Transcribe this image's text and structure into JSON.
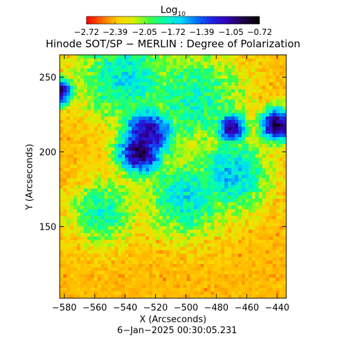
{
  "chart_data": {
    "type": "heatmap",
    "title": "Hinode SOT/SP − MERLIN : Degree of Polarization",
    "colorbar": {
      "label_base": "Log",
      "label_sub": "10",
      "ticks": [
        -2.72,
        -2.39,
        -2.05,
        -1.72,
        -1.39,
        -1.05,
        -0.72
      ],
      "tick_labels": [
        "−2.72",
        "−2.39",
        "−2.05",
        "−1.72",
        "−1.39",
        "−1.05",
        "−0.72"
      ],
      "range": [
        -2.72,
        -0.72
      ],
      "colors": [
        "#ff0000",
        "#ff6a00",
        "#ffd000",
        "#d8f000",
        "#40ff40",
        "#00ffb0",
        "#00d8ff",
        "#0070ff",
        "#2020e0",
        "#3000b0",
        "#200040",
        "#000000"
      ]
    },
    "xlabel": "X (Arcseconds)",
    "ylabel": "Y (Arcseconds)",
    "xlim": [
      -583,
      -434
    ],
    "ylim": [
      102,
      265
    ],
    "xticks": [
      -580,
      -560,
      -540,
      -520,
      -500,
      -480,
      -460,
      -440
    ],
    "xtick_labels": [
      "−580",
      "−560",
      "−540",
      "−520",
      "−500",
      "−480",
      "−460",
      "−440"
    ],
    "yticks": [
      150,
      200,
      250
    ],
    "ytick_labels": [
      "150",
      "200",
      "250"
    ],
    "features": [
      {
        "x": -530,
        "y": 200,
        "value": -0.9,
        "radius": 12
      },
      {
        "x": -525,
        "y": 212,
        "value": -1.05,
        "radius": 14
      },
      {
        "x": -470,
        "y": 216,
        "value": -1.0,
        "radius": 8
      },
      {
        "x": -440,
        "y": 218,
        "value": -0.9,
        "radius": 9
      },
      {
        "x": -583,
        "y": 240,
        "value": -1.0,
        "radius": 7
      },
      {
        "x": -540,
        "y": 250,
        "value": -1.7,
        "radius": 25
      },
      {
        "x": -495,
        "y": 235,
        "value": -1.8,
        "radius": 28
      },
      {
        "x": -500,
        "y": 170,
        "value": -1.7,
        "radius": 22
      },
      {
        "x": -470,
        "y": 185,
        "value": -1.6,
        "radius": 20
      },
      {
        "x": -555,
        "y": 160,
        "value": -1.8,
        "radius": 18
      }
    ],
    "grid": false
  },
  "footer": {
    "date": "6−Jan−2025 00:30:05.231"
  }
}
